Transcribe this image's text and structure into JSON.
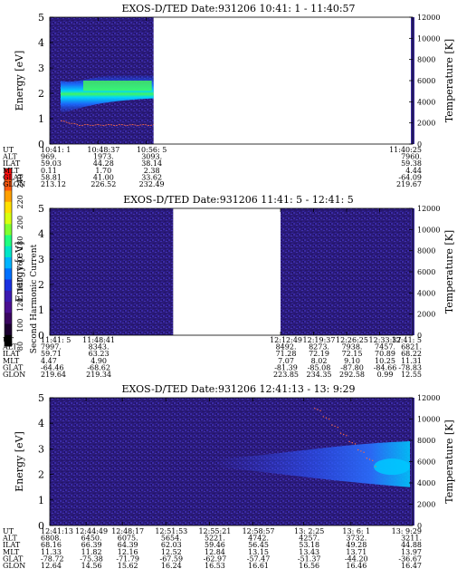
{
  "colors": {
    "background": "#ffffff",
    "plot_noise_low": "#2a1a78",
    "plot_noise_mid": "#3a2aa0",
    "band_blue": "#1a4dff",
    "band_cyan": "#00d7ff",
    "band_green": "#33ff66",
    "temperature_trace": "#ff6a40",
    "right_bar": "#3a2a9a"
  },
  "colorbar": {
    "label": "Second Harmonic Current",
    "ticks": [
      "240",
      "220",
      "200",
      "180",
      "160",
      "140",
      "120",
      "100",
      "80"
    ],
    "colors": [
      "#ff1010",
      "#ff5a10",
      "#ffa000",
      "#ffe000",
      "#d8ff10",
      "#80ff30",
      "#20ff80",
      "#00e6c8",
      "#00b4ff",
      "#0070ff",
      "#1a30e0",
      "#3b1ab0",
      "#4a1090",
      "#3a0660",
      "#1c0030",
      "#000000"
    ]
  },
  "chart_data": [
    {
      "type": "heatmap",
      "title": "EXOS-D/TED   Date:931206  10:41: 1 - 11:40:57",
      "ylabel": "Energy [eV]",
      "y2label": "Temperature [K]",
      "ylim": [
        0,
        5
      ],
      "y2lim": [
        0,
        12000
      ],
      "yticks": [
        "0",
        "1",
        "2",
        "3",
        "4",
        "5"
      ],
      "y2ticks": [
        "0",
        "2000",
        "4000",
        "6000",
        "8000",
        "10000",
        "12000"
      ],
      "data_coverage": [
        [
          0,
          0.286
        ]
      ],
      "time_axis": {
        "labels": [
          "UT",
          "ALT",
          "ILAT",
          "MLT",
          "GLAT",
          "GLON"
        ],
        "columns": [
          {
            "pos": 0.0,
            "values": [
              "10:41: 1",
              "969.",
              "59.03",
              "0.11",
              "58.81",
              "213.12"
            ]
          },
          {
            "pos": 0.133,
            "values": [
              "10:48:37",
              "1973.",
              "44.28",
              "1.70",
              "41.00",
              "226.52"
            ]
          },
          {
            "pos": 0.266,
            "values": [
              "10:56: 5",
              "3093.",
              "38.14",
              "2.38",
              "33.62",
              "232.49"
            ]
          },
          {
            "pos": 1.0,
            "values": [
              "11:40:25",
              "7960.",
              "59.38",
              "4.44",
              "-64.09",
              "219.67"
            ]
          }
        ]
      },
      "band": {
        "center_ev": [
          1.8,
          2.1,
          2.2,
          2.25,
          2.25,
          2.3
        ],
        "temperature_k": [
          2000,
          1900,
          1850,
          1800,
          1800,
          1850
        ]
      }
    },
    {
      "type": "heatmap",
      "title": "EXOS-D/TED   Date:931206  11:41: 5 - 12:41: 5",
      "ylabel": "Energy [eV]",
      "y2label": "Temperature [K]",
      "ylim": [
        0,
        5
      ],
      "y2lim": [
        0,
        12000
      ],
      "yticks": [
        "0",
        "1",
        "2",
        "3",
        "4",
        "5"
      ],
      "y2ticks": [
        "0",
        "2000",
        "4000",
        "6000",
        "8000",
        "10000",
        "12000"
      ],
      "data_coverage": [
        [
          0,
          0.34
        ],
        [
          0.636,
          1.0
        ]
      ],
      "time_axis": {
        "labels": [
          "UT",
          "ALT",
          "ILAT",
          "MLT",
          "GLAT",
          "GLON"
        ],
        "columns": [
          {
            "pos": 0.0,
            "values": [
              "11:41: 5",
              "7997.",
              "59.71",
              "4.47",
              "-64.46",
              "219.64"
            ]
          },
          {
            "pos": 0.12,
            "values": [
              "11:48:41",
              "8343.",
              "63.23",
              "4.90",
              "-68.62",
              "219.34"
            ]
          },
          {
            "pos": 0.636,
            "values": [
              "12:12:49",
              "8492.",
              "71.28",
              "7.07",
              "-81.39",
              "223.85"
            ]
          },
          {
            "pos": 0.727,
            "values": [
              "12:19:37",
              "8273.",
              "72.19",
              "8.02",
              "-85.08",
              "234.35"
            ]
          },
          {
            "pos": 0.818,
            "values": [
              "12:26:25",
              "7938.",
              "72.15",
              "9.10",
              "-87.80",
              "292.58"
            ]
          },
          {
            "pos": 0.909,
            "values": [
              "12:33:37",
              "7457.",
              "70.89",
              "10.25",
              "-84.66",
              "0.99"
            ]
          },
          {
            "pos": 1.0,
            "values": [
              "12:41: 5",
              "6821.",
              "68.22",
              "11.31",
              "-78.83",
              "12.55"
            ]
          }
        ]
      }
    },
    {
      "type": "heatmap",
      "title": "EXOS-D/TED   Date:931206  12:41:13 - 13: 9:29",
      "ylabel": "Energy [eV]",
      "y2label": "Temperature [K]",
      "ylim": [
        0,
        5
      ],
      "y2lim": [
        0,
        12000
      ],
      "yticks": [
        "0",
        "1",
        "2",
        "3",
        "4",
        "5"
      ],
      "y2ticks": [
        "0",
        "2000",
        "4000",
        "6000",
        "8000",
        "10000",
        "12000"
      ],
      "data_coverage": [
        [
          0,
          1.0
        ]
      ],
      "time_axis": {
        "labels": [
          "UT",
          "ALT",
          "ILAT",
          "MLT",
          "GLAT",
          "GLON"
        ],
        "columns": [
          {
            "pos": 0.0,
            "values": [
              "12:41:13",
              "6808.",
              "68.16",
              "11.33",
              "-78.72",
              "12.64"
            ]
          },
          {
            "pos": 0.1,
            "values": [
              "12:44:49",
              "6450.",
              "66.39",
              "11.82",
              "-75.38",
              "14.56"
            ]
          },
          {
            "pos": 0.2,
            "values": [
              "12:48:17",
              "6075.",
              "64.39",
              "12.16",
              "-71.79",
              "15.62"
            ]
          },
          {
            "pos": 0.32,
            "values": [
              "12:51:53",
              "5654.",
              "62.03",
              "12.52",
              "-67.59",
              "16.24"
            ]
          },
          {
            "pos": 0.44,
            "values": [
              "12:55:21",
              "5221.",
              "59.46",
              "12.84",
              "-62.97",
              "16.53"
            ]
          },
          {
            "pos": 0.56,
            "values": [
              "12:58:57",
              "4742.",
              "56.45",
              "13.15",
              "-57.47",
              "16.61"
            ]
          },
          {
            "pos": 0.7,
            "values": [
              "13: 2:25",
              "4257.",
              "53.18",
              "13.43",
              "-51.37",
              "16.56"
            ]
          },
          {
            "pos": 0.83,
            "values": [
              "13: 6: 1",
              "3732.",
              "49.28",
              "13.71",
              "-44.20",
              "16.46"
            ]
          },
          {
            "pos": 1.0,
            "values": [
              "13: 9:29",
              "3211.",
              "44.88",
              "13.97",
              "-36.67",
              "16.47"
            ]
          }
        ]
      }
    }
  ]
}
